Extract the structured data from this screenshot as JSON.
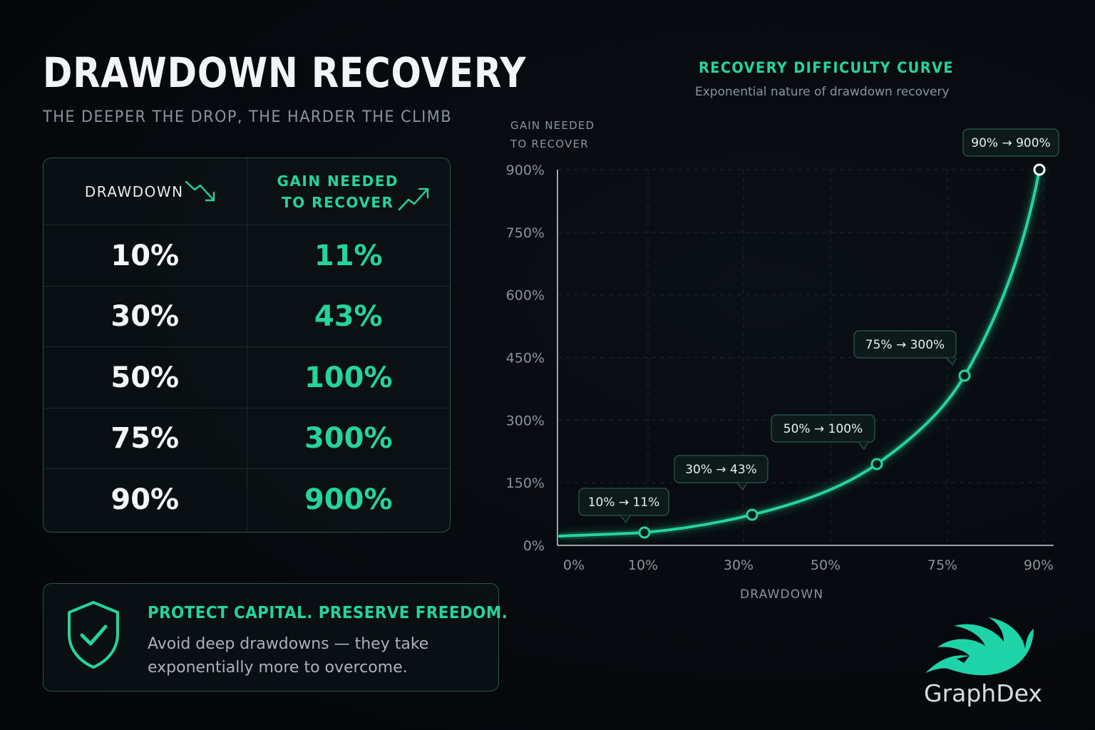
{
  "header": {
    "title": "DRAWDOWN RECOVERY",
    "subtitle": "THE DEEPER THE DROP, THE HARDER THE CLIMB"
  },
  "table": {
    "col1_header": "DRAWDOWN",
    "col2_header_line1": "GAIN NEEDED",
    "col2_header_line2": "TO RECOVER",
    "rows": [
      {
        "drawdown": "10%",
        "gain": "11%"
      },
      {
        "drawdown": "30%",
        "gain": "43%"
      },
      {
        "drawdown": "50%",
        "gain": "100%"
      },
      {
        "drawdown": "75%",
        "gain": "300%"
      },
      {
        "drawdown": "90%",
        "gain": "900%"
      }
    ],
    "icons": [
      "trend-down-icon",
      "trend-up-icon"
    ]
  },
  "callout": {
    "title": "PROTECT CAPITAL. PRESERVE FREEDOM.",
    "body": "Avoid deep drawdowns — they take exponentially more to overcome.",
    "icon": "shield-check-icon"
  },
  "brand": {
    "name": "GraphDex",
    "icon": "graphdex-logo-icon"
  },
  "colors": {
    "accent": "#25d49b",
    "background": "#05080c",
    "border": "#1f5a45"
  },
  "chart_data": {
    "type": "line",
    "title": "RECOVERY DIFFICULTY CURVE",
    "subtitle": "Exponential nature of drawdown recovery",
    "ylabel_line1": "GAIN NEEDED",
    "ylabel_line2": "TO RECOVER",
    "xlabel": "DRAWDOWN",
    "x_ticks": [
      "0%",
      "10%",
      "30%",
      "50%",
      "75%",
      "90%"
    ],
    "y_ticks": [
      "0%",
      "150%",
      "300%",
      "450%",
      "600%",
      "750%",
      "900%"
    ],
    "ylim": [
      0,
      900
    ],
    "grid": true,
    "series": [
      {
        "values": [
          {
            "x": 10,
            "y": 11
          },
          {
            "x": 30,
            "y": 43
          },
          {
            "x": 50,
            "y": 100
          },
          {
            "x": 75,
            "y": 300
          },
          {
            "x": 90,
            "y": 900
          }
        ]
      }
    ],
    "annotations": [
      "10% → 11%",
      "30% → 43%",
      "50% → 100%",
      "75% → 300%",
      "90% → 900%"
    ]
  }
}
